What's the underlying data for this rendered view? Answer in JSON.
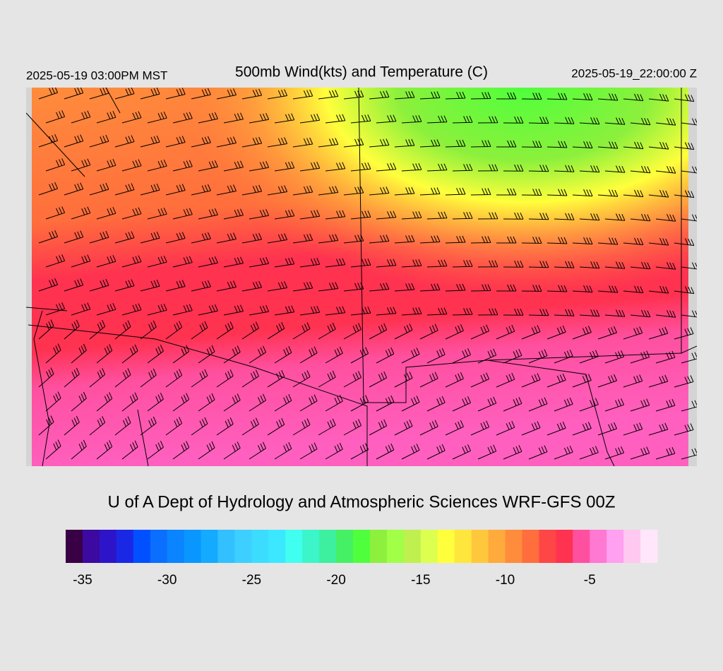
{
  "header": {
    "left": "2025-05-19 03:00PM MST",
    "title": "500mb Wind(kts) and Temperature (C)",
    "right": "2025-05-19_22:00:00 Z"
  },
  "credit": "U of A Dept of Hydrology and Atmospheric Sciences WRF-GFS 00Z",
  "colorbar": {
    "range": [
      -36,
      -1
    ],
    "ticks": [
      -35,
      -30,
      -25,
      -20,
      -15,
      -10,
      -5
    ],
    "colors": [
      "#3a0045",
      "#3c0aa0",
      "#2d14c8",
      "#1a28e6",
      "#0050ff",
      "#0a6eff",
      "#0a84ff",
      "#0a96ff",
      "#14aaff",
      "#32c0ff",
      "#3ccfff",
      "#3cdcff",
      "#3ce8ff",
      "#40fff0",
      "#3cf5c8",
      "#3cf0a0",
      "#46f064",
      "#50ff3c",
      "#8cf03c",
      "#a0ff46",
      "#c0f050",
      "#dcff50",
      "#ffff3c",
      "#ffe63c",
      "#ffc83c",
      "#ffaa3c",
      "#ff8c3c",
      "#ff6e3c",
      "#ff4646",
      "#ff3250",
      "#ff50a0",
      "#ff78d2",
      "#ffa0f0",
      "#ffc8f0",
      "#ffe6fa"
    ]
  }
}
